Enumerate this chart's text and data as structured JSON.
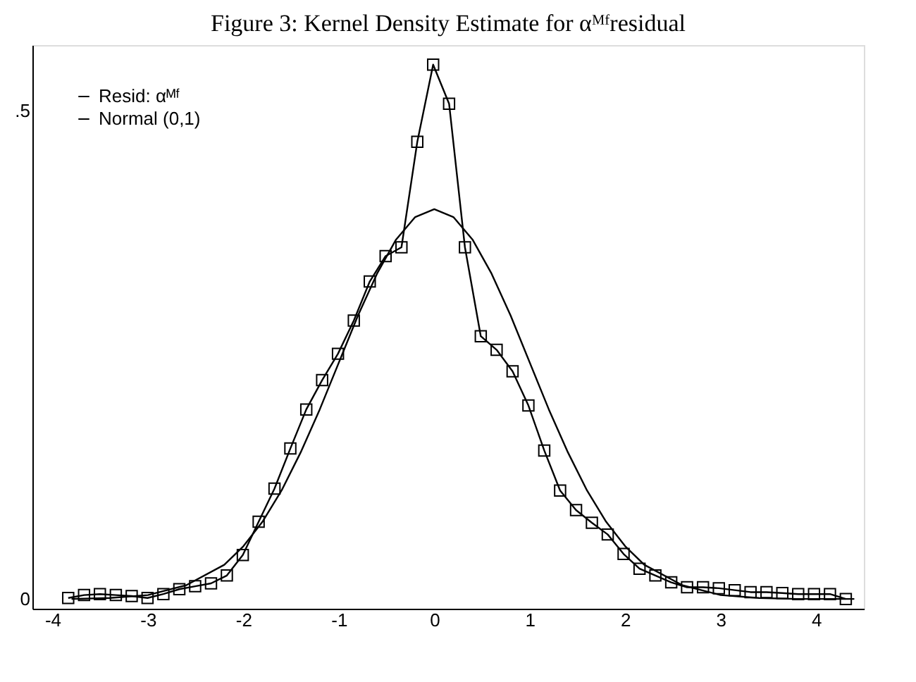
{
  "chart_data": {
    "type": "line",
    "title": "Figure 3:  Kernel Density Estimate for αᴹᶠresidual",
    "xlim": [
      -4.21,
      4.5
    ],
    "xticks": [
      -4,
      -3,
      -2,
      -1,
      0,
      1,
      2,
      3,
      4
    ],
    "ylim": [
      -0.01,
      0.567
    ],
    "yticks": [
      0,
      {
        "value": 0.5,
        "label": ".5"
      }
    ],
    "grid": false,
    "legend": "top left",
    "line_style": "solid",
    "series": [
      {
        "name": "Resid: αᴹᶠ",
        "color": "#000000",
        "marker": "square",
        "x": [
          -3.835,
          -3.669,
          -3.503,
          -3.336,
          -3.17,
          -3.004,
          -2.838,
          -2.671,
          -2.505,
          -2.339,
          -2.173,
          -2.006,
          -1.84,
          -1.674,
          -1.508,
          -1.341,
          -1.175,
          -1.009,
          -0.843,
          -0.676,
          -0.51,
          -0.344,
          -0.178,
          -0.012,
          0.155,
          0.321,
          0.487,
          0.653,
          0.82,
          0.986,
          1.152,
          1.318,
          1.485,
          1.651,
          1.817,
          1.983,
          2.15,
          2.316,
          2.482,
          2.648,
          2.815,
          2.981,
          3.147,
          3.313,
          3.48,
          3.646,
          3.812,
          3.978,
          4.145,
          4.311
        ],
        "values": [
          0.001,
          0.004,
          0.005,
          0.004,
          0.003,
          0.001,
          0.005,
          0.01,
          0.013,
          0.016,
          0.024,
          0.045,
          0.079,
          0.113,
          0.154,
          0.194,
          0.224,
          0.251,
          0.285,
          0.325,
          0.351,
          0.36,
          0.468,
          0.547,
          0.507,
          0.36,
          0.269,
          0.255,
          0.233,
          0.198,
          0.152,
          0.111,
          0.091,
          0.078,
          0.066,
          0.046,
          0.031,
          0.024,
          0.017,
          0.012,
          0.012,
          0.011,
          0.009,
          0.007,
          0.007,
          0.006,
          0.005,
          0.005,
          0.005,
          0.0
        ]
      },
      {
        "name": "Normal (0,1)",
        "color": "#000000",
        "marker": "none",
        "x": [
          -3.8,
          -3.4,
          -3.0,
          -2.6,
          -2.2,
          -2.0,
          -1.8,
          -1.6,
          -1.4,
          -1.2,
          -1.0,
          -0.8,
          -0.6,
          -0.4,
          -0.2,
          0.0,
          0.2,
          0.4,
          0.6,
          0.8,
          1.0,
          1.2,
          1.4,
          1.6,
          1.8,
          2.0,
          2.2,
          2.6,
          3.0,
          3.4,
          3.8,
          4.4
        ],
        "values": [
          0.0,
          0.001,
          0.004,
          0.014,
          0.035,
          0.054,
          0.079,
          0.111,
          0.15,
          0.194,
          0.242,
          0.29,
          0.333,
          0.368,
          0.391,
          0.399,
          0.391,
          0.368,
          0.333,
          0.29,
          0.242,
          0.194,
          0.15,
          0.111,
          0.079,
          0.054,
          0.035,
          0.014,
          0.004,
          0.001,
          0.0,
          0.0
        ]
      }
    ]
  }
}
